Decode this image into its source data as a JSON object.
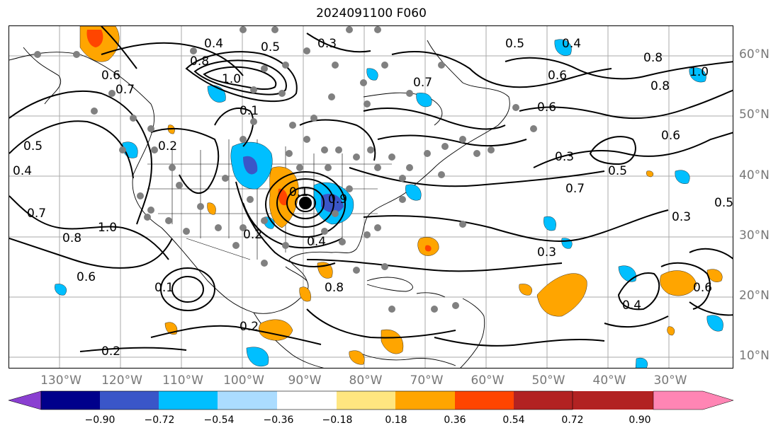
{
  "title": "2024091100 F060",
  "lat_labels": [
    "60°N",
    "50°N",
    "40°N",
    "30°N",
    "20°N",
    "10°N"
  ],
  "lon_labels": [
    "130°W",
    "120°W",
    "110°W",
    "100°W",
    "90°W",
    "80°W",
    "70°W",
    "60°W",
    "50°W",
    "40°W",
    "30°W"
  ],
  "colorbar": {
    "ticks": [
      "−0.90",
      "−0.72",
      "−0.54",
      "−0.36",
      "−0.18",
      "0.18",
      "0.36",
      "0.54",
      "0.72",
      "0.90"
    ],
    "colors": [
      "#8a3fd1",
      "#00008b",
      "#3a56c8",
      "#00bfff",
      "#abdcff",
      "#ffffff",
      "#ffe680",
      "#ffa500",
      "#ff4500",
      "#b22222",
      "#ff85b4"
    ]
  },
  "contour_labels": [
    "0.4",
    "0.5",
    "0.3",
    "0.6",
    "0.8",
    "1.0",
    "0.7",
    "0.2",
    "0.5",
    "0.4",
    "0.7",
    "0.6",
    "0.8",
    "1.0",
    "0.1",
    "0.2",
    "0.6",
    "0.3",
    "0.5",
    "0.3",
    "0.5",
    "0.6",
    "0.4",
    "0.5",
    "0.6",
    "0.8",
    "0.3",
    "0.6",
    "1.0",
    "0.7",
    "0.8",
    "0.2",
    "0.4",
    "0.1",
    "0.9",
    "0.8",
    "0.4",
    "0.1",
    "0.2",
    "0.7"
  ],
  "chart_data": {
    "type": "map",
    "title": "2024091100 F060",
    "lon_range": [
      -137,
      -18
    ],
    "lat_range": [
      8,
      65
    ],
    "graticule_lon": [
      -130,
      -120,
      -110,
      -100,
      -90,
      -80,
      -70,
      -60,
      -50,
      -40,
      -30
    ],
    "graticule_lat": [
      10,
      20,
      30,
      40,
      50,
      60
    ],
    "colorbar_bounds": [
      -0.9,
      -0.72,
      -0.54,
      -0.36,
      -0.18,
      0.18,
      0.36,
      0.54,
      0.72,
      0.9
    ],
    "storm_center": {
      "lon": -90,
      "lat": 35.5
    }
  }
}
